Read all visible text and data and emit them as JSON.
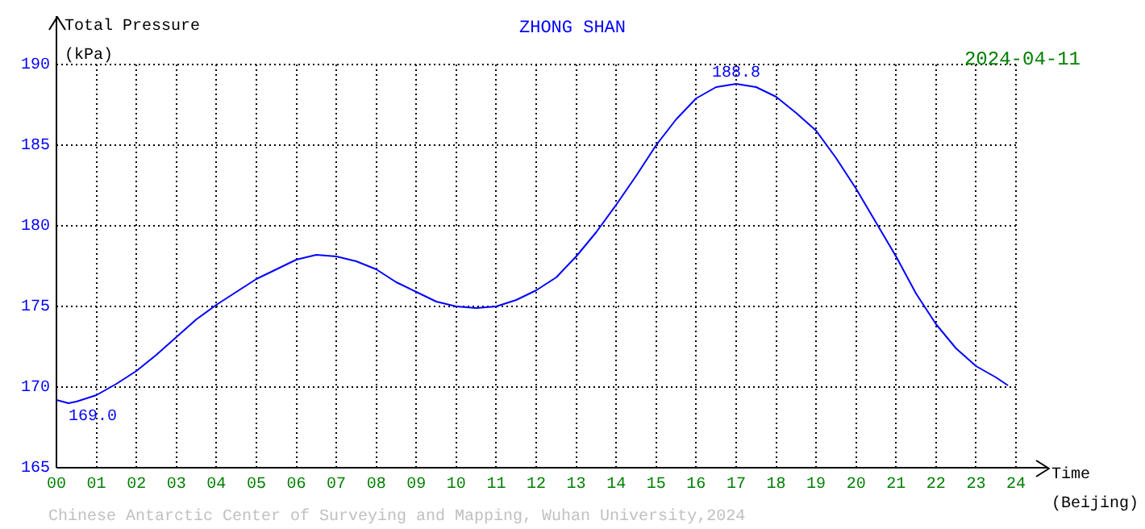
{
  "chart_data": {
    "type": "line",
    "title": "ZHONG SHAN",
    "subtitle": "2024-04-11",
    "ylabel": "Total Pressure (kPa)",
    "xlabel": "Time (Beijing)",
    "annotations": [
      {
        "text": "169.0",
        "x": 0.3,
        "y": 169.0
      },
      {
        "text": "188.8",
        "x": 17,
        "y": 188.8
      },
      "Chinese Antarctic Center of Surveying and Mapping, Wuhan University,2024"
    ],
    "x": [
      0,
      0.3,
      0.5,
      1,
      1.5,
      2,
      2.5,
      3,
      3.5,
      4,
      4.5,
      5,
      5.5,
      6,
      6.5,
      7,
      7.5,
      8,
      8.5,
      9,
      9.5,
      10,
      10.5,
      11,
      11.5,
      12,
      12.5,
      13,
      13.5,
      14,
      14.5,
      15,
      15.5,
      16,
      16.5,
      17,
      17.5,
      18,
      18.5,
      19,
      19.5,
      20,
      20.5,
      21,
      21.5,
      22,
      22.5,
      23,
      23.5,
      23.8
    ],
    "series": [
      {
        "color": "#0000ff",
        "values": [
          169.2,
          169.0,
          169.1,
          169.5,
          170.2,
          171.0,
          172.0,
          173.1,
          174.2,
          175.1,
          175.9,
          176.7,
          177.3,
          177.9,
          178.2,
          178.1,
          177.8,
          177.3,
          176.5,
          175.9,
          175.3,
          175.0,
          174.9,
          175.0,
          175.4,
          176.0,
          176.8,
          178.1,
          179.6,
          181.3,
          183.1,
          185.0,
          186.6,
          187.9,
          188.6,
          188.8,
          188.6,
          188.0,
          187.0,
          185.9,
          184.2,
          182.3,
          180.2,
          178.1,
          175.8,
          173.9,
          172.4,
          171.3,
          170.6,
          170.1
        ]
      }
    ],
    "xlim": [
      0,
      24
    ],
    "xticks": [
      {
        "value": 0,
        "label": "00"
      },
      {
        "value": 1,
        "label": "01"
      },
      {
        "value": 2,
        "label": "02"
      },
      {
        "value": 3,
        "label": "03"
      },
      {
        "value": 4,
        "label": "04"
      },
      {
        "value": 5,
        "label": "05"
      },
      {
        "value": 6,
        "label": "06"
      },
      {
        "value": 7,
        "label": "07"
      },
      {
        "value": 8,
        "label": "08"
      },
      {
        "value": 9,
        "label": "09"
      },
      10,
      11,
      12,
      13,
      14,
      15,
      16,
      17,
      18,
      19,
      20,
      21,
      22,
      23,
      24
    ],
    "ylim": [
      165,
      190
    ],
    "yticks": [
      165,
      170,
      175,
      180,
      185,
      190
    ],
    "grid": true,
    "legend": false,
    "marker": "none",
    "line_style": "solid"
  }
}
